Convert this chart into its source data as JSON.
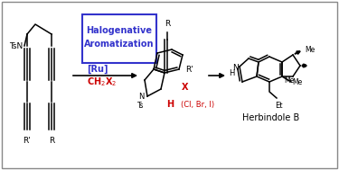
{
  "background_color": "#ffffff",
  "border_color": "#888888",
  "box_border": "#3333cc",
  "box_text1": "Halogenative",
  "box_text2": "Aromatization",
  "box_text_color": "#3333cc",
  "ru_text": "[Ru]",
  "ru_color": "#3333cc",
  "ch2x2_color": "#cc0000",
  "red": "#cc0000",
  "black": "#000000"
}
